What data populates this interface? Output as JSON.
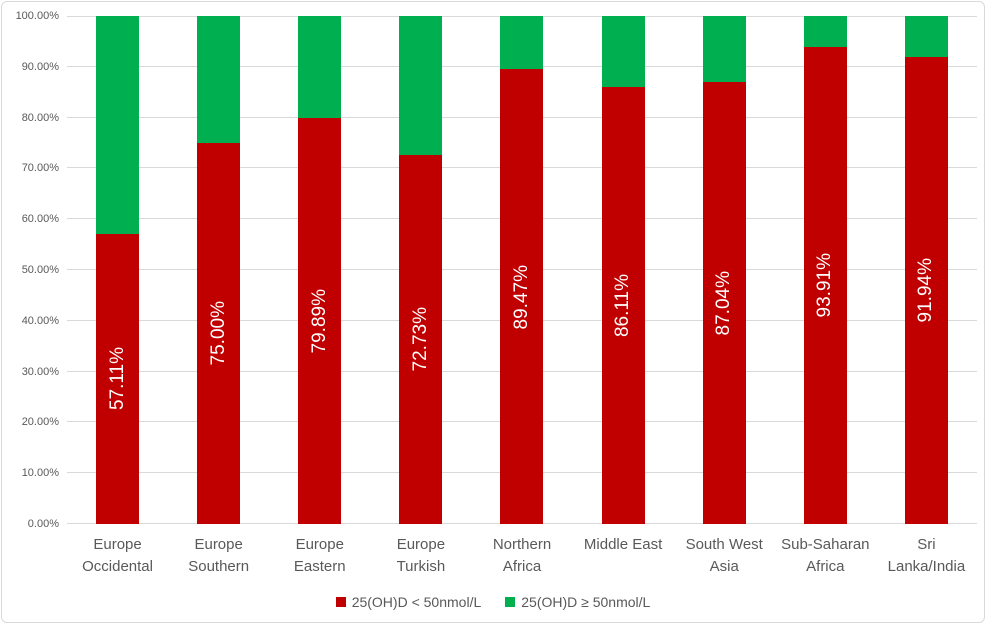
{
  "chart_data": {
    "type": "bar",
    "subtype": "stacked-100-percent",
    "title": "",
    "xlabel": "",
    "ylabel": "",
    "categories": [
      "Europe Occidental",
      "Europe Southern",
      "Europe Eastern",
      "Europe Turkish",
      "Northern Africa",
      "Middle East",
      "South West Asia",
      "Sub-Saharan Africa",
      "Sri Lanka/India"
    ],
    "series": [
      {
        "name": "25(OH)D < 50nmol/L",
        "color": "#C00000",
        "values": [
          57.11,
          75.0,
          79.89,
          72.73,
          89.47,
          86.11,
          87.04,
          93.91,
          91.94
        ],
        "data_labels": [
          "57.11%",
          "75.00%",
          "79.89%",
          "72.73%",
          "89.47%",
          "86.11%",
          "87.04%",
          "93.91%",
          "91.94%"
        ],
        "data_label_color": "#FFFFFF"
      },
      {
        "name": "25(OH)D ≥ 50nmol/L",
        "color": "#00B050",
        "values": [
          42.89,
          25.0,
          20.11,
          27.27,
          10.53,
          13.89,
          12.96,
          6.09,
          8.06
        ],
        "data_labels": [],
        "data_label_color": ""
      }
    ],
    "y_axis": {
      "min": 0,
      "max": 100,
      "tick_interval": 10,
      "tick_labels": [
        "0.00%",
        "10.00%",
        "20.00%",
        "30.00%",
        "40.00%",
        "50.00%",
        "60.00%",
        "70.00%",
        "80.00%",
        "90.00%",
        "100.00%"
      ],
      "grid": true,
      "gridline_color": "#D9D9D9",
      "text_color": "#595959"
    },
    "legend": {
      "position": "bottom",
      "items": [
        {
          "label": "25(OH)D < 50nmol/L",
          "color": "#C00000"
        },
        {
          "label": "25(OH)D ≥ 50nmol/L",
          "color": "#00B050"
        }
      ]
    },
    "background_color": "#FFFFFF",
    "border_color": "#D9D9D9"
  }
}
